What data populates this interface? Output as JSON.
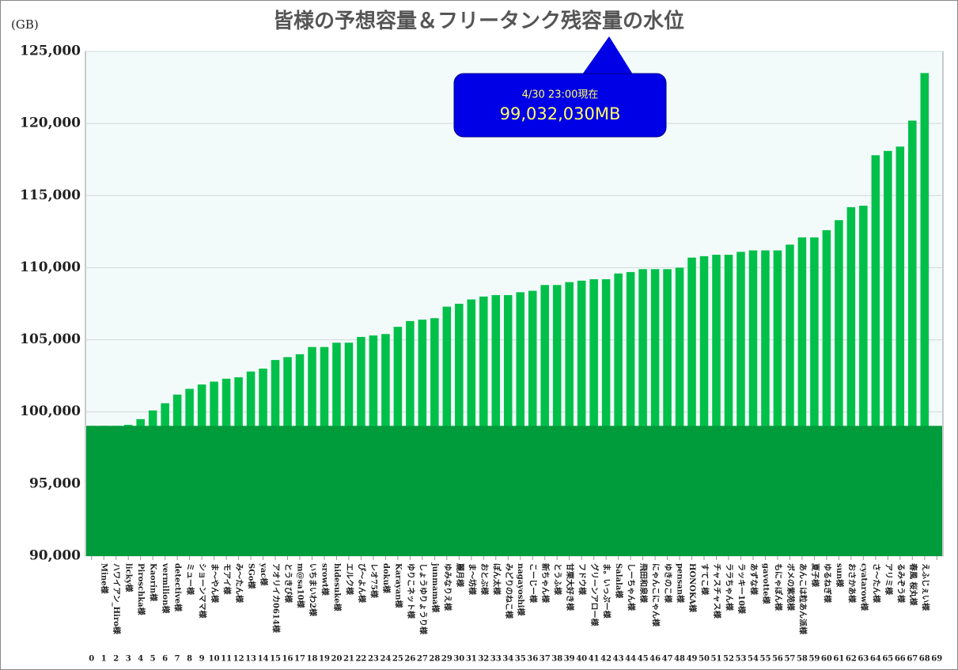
{
  "chart_data": {
    "type": "bar",
    "title": "皆様の予想容量＆フリータンク残容量の水位",
    "y_label": "(GB)",
    "annotation": {
      "date": "4/30 23:00現在",
      "text": "99,032,030MB"
    },
    "level": 99032.03,
    "level_color": "#009b3a",
    "color": "#00c04a",
    "ranks": [
      0,
      1,
      2,
      3,
      4,
      5,
      6,
      7,
      8,
      9,
      10,
      11,
      12,
      13,
      14,
      15,
      16,
      17,
      18,
      19,
      20,
      21,
      22,
      23,
      24,
      25,
      26,
      27,
      28,
      29,
      30,
      31,
      32,
      33,
      34,
      35,
      36,
      37,
      38,
      39,
      40,
      41,
      42,
      43,
      44,
      45,
      46,
      47,
      48,
      49,
      50,
      51,
      52,
      53,
      54,
      55,
      56,
      57,
      58,
      59,
      60,
      61,
      62,
      63,
      64,
      65,
      66,
      67,
      68,
      69
    ],
    "categories": [
      null,
      "Mine様",
      "ハワイアン_Hiro様",
      "licky様",
      "Piroschka様",
      "Kaorin様",
      "vermilion様",
      "detective様",
      "ミュー様",
      "ショーンママ様",
      "ま～やん様",
      "モアイ様",
      "み～たん様",
      "SGo様",
      "yac様",
      "アオリイカ0614様",
      "とうきび様",
      "m@sa10様",
      "いちまいわ2様",
      "srowt様",
      "hidesuke様",
      "エルク様",
      "ぴ～よん様",
      "レオ75様",
      "doku様",
      "Karayan様",
      "ゆりこネット様",
      "しょうゆりょうり様",
      "junmama様",
      "ゆみなりえ様",
      "麗月様",
      "ま～坊様",
      "おとぶ様",
      "ぽん太様",
      "みどりのねこ様",
      "nagayoshi様",
      "こーじー様",
      "新ちゃん様",
      "とうふ様",
      "甘栗大好き様",
      "フドウ様",
      "グリーンアロー様",
      "ま。いっぷー様",
      "Salala様",
      "しーちゃん様",
      "飛田和泉様",
      "にゃんこにゃん様",
      "ゆきのこ様",
      "pensan様",
      "HONOKA様",
      "すてこ様",
      "チャスチャス様",
      "ララちゃん様",
      "ラッキー10様",
      "あずな様",
      "gavotte様",
      "もにゃぽん様",
      "ボメの紫苑様",
      "あんこは粒あん派様",
      "夏子様",
      "ゆるねぎ様",
      "sun様",
      "おさかあ様",
      "cyatarow様",
      "さ～たん様",
      "アリミ様",
      "るみぞう様",
      "春風 桜丸様",
      "えふじぇい様",
      null
    ],
    "values": [
      99032,
      99032,
      99032,
      99100,
      99500,
      100100,
      100600,
      101200,
      101600,
      101900,
      102100,
      102300,
      102400,
      102800,
      103000,
      103600,
      103800,
      104000,
      104500,
      104500,
      104800,
      104800,
      105200,
      105300,
      105400,
      105900,
      106300,
      106400,
      106500,
      107300,
      107500,
      107800,
      108000,
      108100,
      108100,
      108300,
      108400,
      108800,
      108800,
      109000,
      109100,
      109200,
      109200,
      109600,
      109700,
      109900,
      109900,
      109900,
      110000,
      110700,
      110800,
      110900,
      110900,
      111100,
      111200,
      111200,
      111200,
      111600,
      112100,
      112100,
      112600,
      113300,
      114200,
      114300,
      117800,
      118100,
      118400,
      120200,
      123500,
      null
    ],
    "ylim": [
      90000,
      125000
    ],
    "yticks": [
      {
        "value": 90000,
        "label": "90,000"
      },
      {
        "value": 95000,
        "label": "95,000"
      },
      {
        "value": 100000,
        "label": "100,000"
      },
      {
        "value": 105000,
        "label": "105,000"
      },
      {
        "value": 110000,
        "label": "110,000"
      },
      {
        "value": 115000,
        "label": "115,000"
      },
      {
        "value": 120000,
        "label": "120,000"
      },
      {
        "value": 125000,
        "label": "125,000"
      }
    ],
    "grid": true
  }
}
